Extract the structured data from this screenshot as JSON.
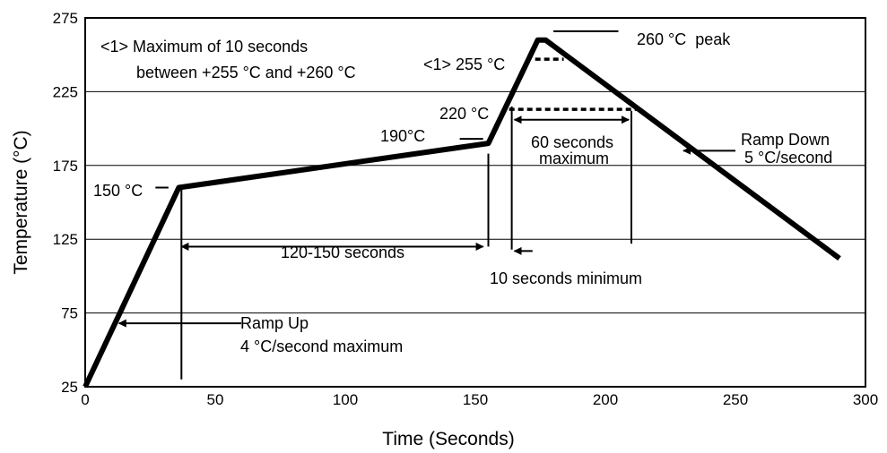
{
  "chart_data": {
    "type": "line",
    "xlabel": "Time (Seconds)",
    "ylabel": "Temperature (°C)",
    "xlim": [
      0,
      300
    ],
    "ylim": [
      25,
      275
    ],
    "xticks": [
      0,
      50,
      100,
      150,
      200,
      250,
      300
    ],
    "yticks": [
      25,
      75,
      125,
      175,
      225,
      275
    ],
    "grid": "horizontal",
    "series": [
      {
        "x": [
          0,
          36,
          155,
          174,
          177,
          290
        ],
        "y": [
          25,
          160,
          190,
          260,
          260,
          112
        ]
      }
    ],
    "annotations": {
      "note_line1": "<1> Maximum of 10 seconds",
      "note_line2": "between +255 °C and +260 °C",
      "peak": "260 °C  peak",
      "t255": "<1> 255 °C",
      "t220": "220 °C",
      "t190": "190°C",
      "t150": "150 °C",
      "sixty_line1": "60 seconds",
      "sixty_line2": "maximum",
      "ramp_down_line1": "Ramp Down",
      "ramp_down_line2": "5 °C/second",
      "soak": "120-150 seconds",
      "ten_sec": "10 seconds minimum",
      "ramp_up_line1": "Ramp Up",
      "ramp_up_line2": "4 °C/second maximum"
    }
  }
}
